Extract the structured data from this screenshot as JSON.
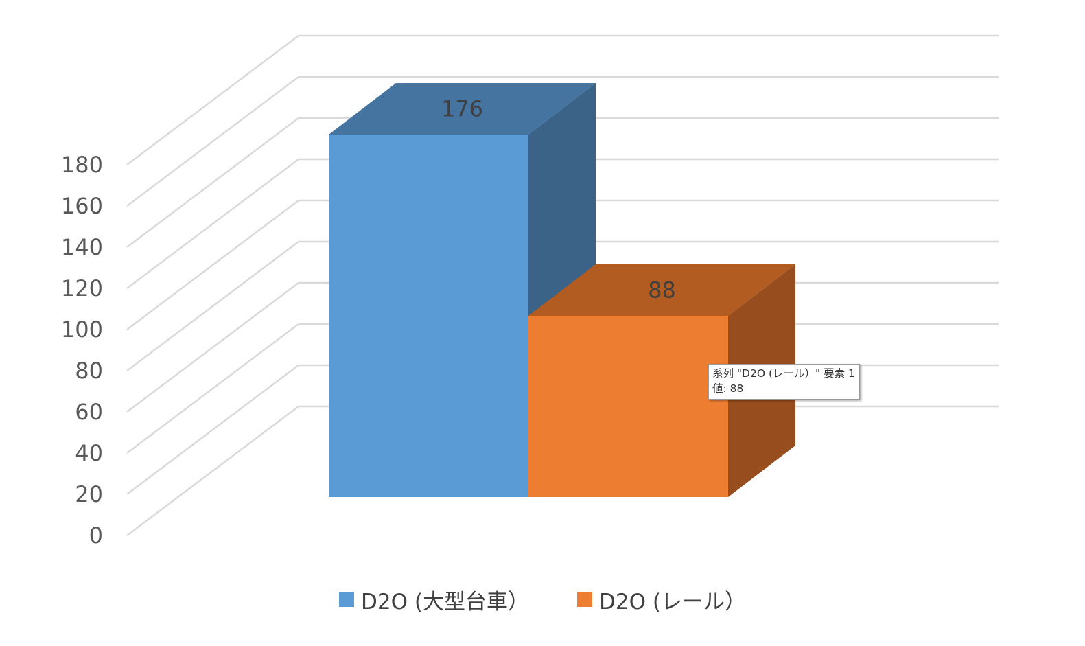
{
  "chart_data": {
    "type": "bar",
    "style": "3d-column",
    "categories": [
      ""
    ],
    "series": [
      {
        "name": "D2O (大型台車）",
        "values": [
          176
        ],
        "color": "#5b9bd5"
      },
      {
        "name": "D2O (レール）",
        "values": [
          88
        ],
        "color": "#ed7d31"
      }
    ],
    "y_ticks": [
      "0",
      "20",
      "40",
      "60",
      "80",
      "100",
      "120",
      "140",
      "160",
      "180"
    ],
    "ylim": [
      0,
      180
    ],
    "grid": true,
    "legend_position": "bottom",
    "data_labels": [
      "176",
      "88"
    ],
    "colors": {
      "blue_front": "#5b9bd5",
      "blue_top": "#4674a0",
      "blue_side": "#3a6387",
      "orange_front": "#ed7d31",
      "orange_top": "#b25c22",
      "orange_side": "#984d1e",
      "grid": "#d9d9d9"
    }
  },
  "tooltip": {
    "line1": "系列 \"D2O (レール）\" 要素 1",
    "line2": "値: 88"
  }
}
